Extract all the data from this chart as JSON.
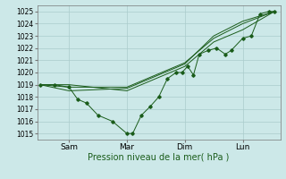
{
  "bg_color": "#cce8e8",
  "grid_color": "#aacccc",
  "line_color": "#1a5c1a",
  "marker_color": "#1a5c1a",
  "xlabel": "Pression niveau de la mer( hPa )",
  "ylim": [
    1014.5,
    1025.5
  ],
  "yticks": [
    1015,
    1016,
    1017,
    1018,
    1019,
    1020,
    1021,
    1022,
    1023,
    1024,
    1025
  ],
  "xtick_labels": [
    "Sam",
    "Mar",
    "Dim",
    "Lun"
  ],
  "xtick_positions": [
    1,
    3,
    5,
    7
  ],
  "xlim": [
    -0.1,
    8.3
  ],
  "series_detailed": [
    0,
    1019,
    0.5,
    1019,
    1,
    1018.8,
    1.3,
    1017.8,
    1.6,
    1017.5,
    2,
    1016.5,
    2.5,
    1016.0,
    3,
    1015.0,
    3.2,
    1015.0,
    3.5,
    1016.5,
    3.8,
    1017.2,
    4.1,
    1018.0,
    4.4,
    1019.5,
    4.7,
    1020.0,
    4.9,
    1020.0,
    5.1,
    1020.5,
    5.3,
    1019.8,
    5.5,
    1021.5,
    5.8,
    1021.8,
    6.1,
    1022.0,
    6.4,
    1021.5,
    6.6,
    1021.8,
    7.0,
    1022.8,
    7.3,
    1023.0,
    7.6,
    1024.8,
    7.9,
    1025.0,
    8.1,
    1025.0
  ],
  "series_smooth": [
    [
      0,
      1019,
      1,
      1019,
      3,
      1018.5,
      5,
      1020.5,
      6,
      1022.5,
      7,
      1023.5,
      8.1,
      1025.0
    ],
    [
      0,
      1019,
      1,
      1018.8,
      3,
      1018.8,
      5,
      1020.8,
      6,
      1022.8,
      7,
      1024.0,
      8.1,
      1025.0
    ],
    [
      0,
      1019,
      1,
      1018.5,
      3,
      1018.7,
      5,
      1020.7,
      6,
      1023.0,
      7,
      1024.2,
      8.1,
      1025.0
    ]
  ]
}
